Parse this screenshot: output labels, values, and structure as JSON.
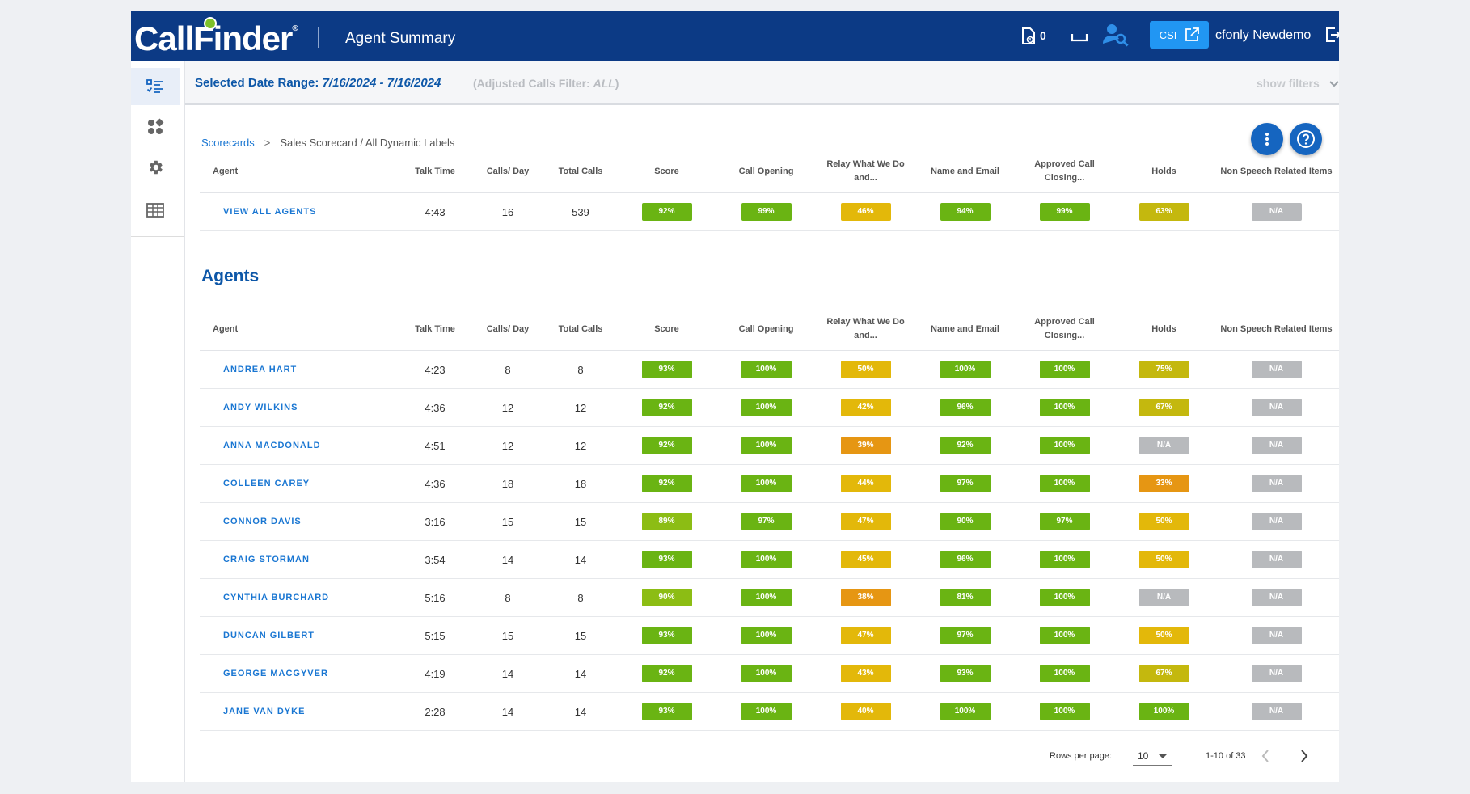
{
  "header": {
    "logo": "CallFinder",
    "page_title": "Agent Summary",
    "doc_count": "0",
    "csi_label": "CSI",
    "user_name": "cfonly Newdemo"
  },
  "filter_bar": {
    "label": "Selected Date Range:",
    "range": "7/16/2024 - 7/16/2024",
    "adj_prefix": "(Adjusted Calls Filter:",
    "adj_value": "ALL",
    "adj_suffix": ")",
    "show_filters": "show filters"
  },
  "breadcrumb": {
    "root": "Scorecards",
    "separator": ">",
    "current": "Sales Scorecard / All Dynamic Labels"
  },
  "columns": [
    "Agent",
    "Talk Time",
    "Calls/ Day",
    "Total Calls",
    "Score",
    "Call Opening",
    "Relay What We Do and...",
    "Name and Email",
    "Approved Call Closing...",
    "Holds",
    "Non Speech Related Items"
  ],
  "summary_row": {
    "name": "VIEW ALL AGENTS",
    "talk": "4:43",
    "calls_day": "16",
    "total": "539",
    "scores": [
      {
        "v": "92%",
        "c": "green"
      },
      {
        "v": "99%",
        "c": "green"
      },
      {
        "v": "46%",
        "c": "yellow"
      },
      {
        "v": "94%",
        "c": "green"
      },
      {
        "v": "99%",
        "c": "green"
      },
      {
        "v": "63%",
        "c": "olive"
      },
      {
        "v": "N/A",
        "c": "gray"
      }
    ]
  },
  "agents_title": "Agents",
  "agents": [
    {
      "name": "ANDREA HART",
      "talk": "4:23",
      "calls_day": "8",
      "total": "8",
      "scores": [
        {
          "v": "93%",
          "c": "green"
        },
        {
          "v": "100%",
          "c": "green"
        },
        {
          "v": "50%",
          "c": "yellow"
        },
        {
          "v": "100%",
          "c": "green"
        },
        {
          "v": "100%",
          "c": "green"
        },
        {
          "v": "75%",
          "c": "olive"
        },
        {
          "v": "N/A",
          "c": "gray"
        }
      ]
    },
    {
      "name": "ANDY WILKINS",
      "talk": "4:36",
      "calls_day": "12",
      "total": "12",
      "scores": [
        {
          "v": "92%",
          "c": "green"
        },
        {
          "v": "100%",
          "c": "green"
        },
        {
          "v": "42%",
          "c": "yellow"
        },
        {
          "v": "96%",
          "c": "green"
        },
        {
          "v": "100%",
          "c": "green"
        },
        {
          "v": "67%",
          "c": "olive"
        },
        {
          "v": "N/A",
          "c": "gray"
        }
      ]
    },
    {
      "name": "ANNA MACDONALD",
      "talk": "4:51",
      "calls_day": "12",
      "total": "12",
      "scores": [
        {
          "v": "92%",
          "c": "green"
        },
        {
          "v": "100%",
          "c": "green"
        },
        {
          "v": "39%",
          "c": "orange"
        },
        {
          "v": "92%",
          "c": "green"
        },
        {
          "v": "100%",
          "c": "green"
        },
        {
          "v": "N/A",
          "c": "gray"
        },
        {
          "v": "N/A",
          "c": "gray"
        }
      ]
    },
    {
      "name": "COLLEEN CAREY",
      "talk": "4:36",
      "calls_day": "18",
      "total": "18",
      "scores": [
        {
          "v": "92%",
          "c": "green"
        },
        {
          "v": "100%",
          "c": "green"
        },
        {
          "v": "44%",
          "c": "yellow"
        },
        {
          "v": "97%",
          "c": "green"
        },
        {
          "v": "100%",
          "c": "green"
        },
        {
          "v": "33%",
          "c": "orange"
        },
        {
          "v": "N/A",
          "c": "gray"
        }
      ]
    },
    {
      "name": "CONNOR DAVIS",
      "talk": "3:16",
      "calls_day": "15",
      "total": "15",
      "scores": [
        {
          "v": "89%",
          "c": "lgreen"
        },
        {
          "v": "97%",
          "c": "green"
        },
        {
          "v": "47%",
          "c": "yellow"
        },
        {
          "v": "90%",
          "c": "green"
        },
        {
          "v": "97%",
          "c": "green"
        },
        {
          "v": "50%",
          "c": "yellow"
        },
        {
          "v": "N/A",
          "c": "gray"
        }
      ]
    },
    {
      "name": "CRAIG STORMAN",
      "talk": "3:54",
      "calls_day": "14",
      "total": "14",
      "scores": [
        {
          "v": "93%",
          "c": "green"
        },
        {
          "v": "100%",
          "c": "green"
        },
        {
          "v": "45%",
          "c": "yellow"
        },
        {
          "v": "96%",
          "c": "green"
        },
        {
          "v": "100%",
          "c": "green"
        },
        {
          "v": "50%",
          "c": "yellow"
        },
        {
          "v": "N/A",
          "c": "gray"
        }
      ]
    },
    {
      "name": "CYNTHIA BURCHARD",
      "talk": "5:16",
      "calls_day": "8",
      "total": "8",
      "scores": [
        {
          "v": "90%",
          "c": "lgreen"
        },
        {
          "v": "100%",
          "c": "green"
        },
        {
          "v": "38%",
          "c": "orange"
        },
        {
          "v": "81%",
          "c": "green"
        },
        {
          "v": "100%",
          "c": "green"
        },
        {
          "v": "N/A",
          "c": "gray"
        },
        {
          "v": "N/A",
          "c": "gray"
        }
      ]
    },
    {
      "name": "DUNCAN GILBERT",
      "talk": "5:15",
      "calls_day": "15",
      "total": "15",
      "scores": [
        {
          "v": "93%",
          "c": "green"
        },
        {
          "v": "100%",
          "c": "green"
        },
        {
          "v": "47%",
          "c": "yellow"
        },
        {
          "v": "97%",
          "c": "green"
        },
        {
          "v": "100%",
          "c": "green"
        },
        {
          "v": "50%",
          "c": "yellow"
        },
        {
          "v": "N/A",
          "c": "gray"
        }
      ]
    },
    {
      "name": "GEORGE MACGYVER",
      "talk": "4:19",
      "calls_day": "14",
      "total": "14",
      "scores": [
        {
          "v": "92%",
          "c": "green"
        },
        {
          "v": "100%",
          "c": "green"
        },
        {
          "v": "43%",
          "c": "yellow"
        },
        {
          "v": "93%",
          "c": "green"
        },
        {
          "v": "100%",
          "c": "green"
        },
        {
          "v": "67%",
          "c": "olive"
        },
        {
          "v": "N/A",
          "c": "gray"
        }
      ]
    },
    {
      "name": "JANE VAN DYKE",
      "talk": "2:28",
      "calls_day": "14",
      "total": "14",
      "scores": [
        {
          "v": "93%",
          "c": "green"
        },
        {
          "v": "100%",
          "c": "green"
        },
        {
          "v": "40%",
          "c": "yellow"
        },
        {
          "v": "100%",
          "c": "green"
        },
        {
          "v": "100%",
          "c": "green"
        },
        {
          "v": "100%",
          "c": "green"
        },
        {
          "v": "N/A",
          "c": "gray"
        }
      ]
    }
  ],
  "pagination": {
    "rows_label": "Rows per page:",
    "rows_value": "10",
    "range": "1-10 of 33"
  },
  "icons": {
    "sidebar": [
      "scorecard-list-icon",
      "analytics-icon",
      "settings-gear-icon",
      "table-grid-icon"
    ],
    "fab": [
      "more-vert-icon",
      "help-icon"
    ]
  },
  "colors": {
    "header": "#0c3a85",
    "accent": "#1976d2",
    "green": "#6ab413",
    "yellow": "#e3b80a",
    "orange": "#e69613",
    "gray": "#b8babd"
  }
}
